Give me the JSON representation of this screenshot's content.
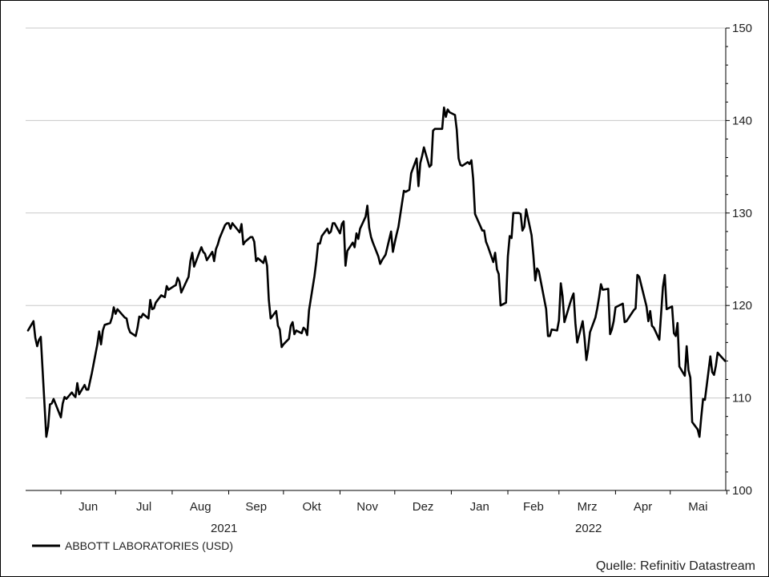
{
  "chart_data": {
    "type": "line",
    "y_axis": {
      "ylim": [
        100,
        150
      ],
      "ticks": [
        100,
        110,
        120,
        130,
        140,
        150
      ],
      "position": "right"
    },
    "x_axis": {
      "month_labels": [
        "Jun",
        "Jul",
        "Aug",
        "Sep",
        "Okt",
        "Nov",
        "Dez",
        "Jan",
        "Feb",
        "Mrz",
        "Apr",
        "Mai"
      ],
      "year_labels": [
        "2021",
        "2022"
      ],
      "xlim": [
        "2021-05-14",
        "2022-05-20"
      ]
    },
    "grid": "horizontal",
    "legend": {
      "position": "bottom-left",
      "entries": [
        "ABBOTT LABORATORIES (USD)"
      ]
    },
    "source": "Quelle: Refinitiv Datastream",
    "series": [
      {
        "name": "ABBOTT LABORATORIES (USD)",
        "color": "#000000",
        "points": [
          [
            "2021-05-14",
            117.3
          ],
          [
            "2021-05-17",
            118.3
          ],
          [
            "2021-05-18",
            116.5
          ],
          [
            "2021-05-19",
            115.6
          ],
          [
            "2021-05-20",
            116.3
          ],
          [
            "2021-05-21",
            116.6
          ],
          [
            "2021-05-24",
            105.8
          ],
          [
            "2021-05-25",
            106.9
          ],
          [
            "2021-05-26",
            109.3
          ],
          [
            "2021-05-27",
            109.4
          ],
          [
            "2021-05-28",
            109.9
          ],
          [
            "2021-06-01",
            107.9
          ],
          [
            "2021-06-02",
            109.4
          ],
          [
            "2021-06-03",
            110.1
          ],
          [
            "2021-06-04",
            109.9
          ],
          [
            "2021-06-07",
            110.6
          ],
          [
            "2021-06-08",
            110.3
          ],
          [
            "2021-06-09",
            110.1
          ],
          [
            "2021-06-10",
            111.6
          ],
          [
            "2021-06-11",
            110.4
          ],
          [
            "2021-06-14",
            111.4
          ],
          [
            "2021-06-15",
            110.9
          ],
          [
            "2021-06-16",
            110.9
          ],
          [
            "2021-06-17",
            111.8
          ],
          [
            "2021-06-18",
            112.7
          ],
          [
            "2021-06-21",
            115.8
          ],
          [
            "2021-06-22",
            117.2
          ],
          [
            "2021-06-23",
            115.8
          ],
          [
            "2021-06-24",
            117.3
          ],
          [
            "2021-06-25",
            117.9
          ],
          [
            "2021-06-28",
            118.1
          ],
          [
            "2021-06-29",
            118.7
          ],
          [
            "2021-06-30",
            119.8
          ],
          [
            "2021-07-01",
            119.1
          ],
          [
            "2021-07-02",
            119.6
          ],
          [
            "2021-07-06",
            118.7
          ],
          [
            "2021-07-07",
            118.6
          ],
          [
            "2021-07-08",
            117.6
          ],
          [
            "2021-07-09",
            117.1
          ],
          [
            "2021-07-12",
            116.7
          ],
          [
            "2021-07-13",
            117.6
          ],
          [
            "2021-07-14",
            118.8
          ],
          [
            "2021-07-15",
            118.7
          ],
          [
            "2021-07-16",
            119.1
          ],
          [
            "2021-07-19",
            118.6
          ],
          [
            "2021-07-20",
            120.6
          ],
          [
            "2021-07-21",
            119.6
          ],
          [
            "2021-07-22",
            119.7
          ],
          [
            "2021-07-23",
            120.3
          ],
          [
            "2021-07-26",
            121.1
          ],
          [
            "2021-07-27",
            121.0
          ],
          [
            "2021-07-28",
            120.9
          ],
          [
            "2021-07-29",
            122.1
          ],
          [
            "2021-07-30",
            121.7
          ],
          [
            "2021-08-02",
            122.1
          ],
          [
            "2021-08-03",
            122.2
          ],
          [
            "2021-08-04",
            123.0
          ],
          [
            "2021-08-05",
            122.6
          ],
          [
            "2021-08-06",
            121.4
          ],
          [
            "2021-08-09",
            122.7
          ],
          [
            "2021-08-10",
            123.1
          ],
          [
            "2021-08-11",
            124.8
          ],
          [
            "2021-08-12",
            125.7
          ],
          [
            "2021-08-13",
            124.2
          ],
          [
            "2021-08-16",
            125.8
          ],
          [
            "2021-08-17",
            126.3
          ],
          [
            "2021-08-18",
            125.8
          ],
          [
            "2021-08-19",
            125.6
          ],
          [
            "2021-08-20",
            124.9
          ],
          [
            "2021-08-23",
            125.8
          ],
          [
            "2021-08-24",
            124.8
          ],
          [
            "2021-08-25",
            126.1
          ],
          [
            "2021-08-26",
            126.6
          ],
          [
            "2021-08-27",
            127.3
          ],
          [
            "2021-08-30",
            128.7
          ],
          [
            "2021-08-31",
            128.9
          ],
          [
            "2021-09-01",
            128.9
          ],
          [
            "2021-09-02",
            128.3
          ],
          [
            "2021-09-03",
            128.9
          ],
          [
            "2021-09-07",
            127.9
          ],
          [
            "2021-09-08",
            128.8
          ],
          [
            "2021-09-09",
            126.6
          ],
          [
            "2021-09-10",
            126.9
          ],
          [
            "2021-09-13",
            127.4
          ],
          [
            "2021-09-14",
            127.4
          ],
          [
            "2021-09-15",
            126.9
          ],
          [
            "2021-09-16",
            124.8
          ],
          [
            "2021-09-17",
            125.1
          ],
          [
            "2021-09-20",
            124.6
          ],
          [
            "2021-09-21",
            125.3
          ],
          [
            "2021-09-22",
            124.3
          ],
          [
            "2021-09-23",
            120.6
          ],
          [
            "2021-09-24",
            118.6
          ],
          [
            "2021-09-27",
            119.4
          ],
          [
            "2021-09-28",
            117.8
          ],
          [
            "2021-09-29",
            117.4
          ],
          [
            "2021-09-30",
            115.5
          ],
          [
            "2021-10-01",
            115.8
          ],
          [
            "2021-10-04",
            116.4
          ],
          [
            "2021-10-05",
            117.8
          ],
          [
            "2021-10-06",
            118.2
          ],
          [
            "2021-10-07",
            116.9
          ],
          [
            "2021-10-08",
            117.3
          ],
          [
            "2021-10-11",
            117.0
          ],
          [
            "2021-10-12",
            117.6
          ],
          [
            "2021-10-13",
            117.4
          ],
          [
            "2021-10-14",
            116.8
          ],
          [
            "2021-10-15",
            119.5
          ],
          [
            "2021-10-18",
            123.2
          ],
          [
            "2021-10-19",
            124.8
          ],
          [
            "2021-10-20",
            126.7
          ],
          [
            "2021-10-21",
            126.7
          ],
          [
            "2021-10-22",
            127.5
          ],
          [
            "2021-10-25",
            128.3
          ],
          [
            "2021-10-26",
            127.8
          ],
          [
            "2021-10-27",
            128.0
          ],
          [
            "2021-10-28",
            128.9
          ],
          [
            "2021-10-29",
            128.9
          ],
          [
            "2021-11-01",
            127.8
          ],
          [
            "2021-11-02",
            128.8
          ],
          [
            "2021-11-03",
            129.1
          ],
          [
            "2021-11-04",
            124.3
          ],
          [
            "2021-11-05",
            125.9
          ],
          [
            "2021-11-08",
            126.8
          ],
          [
            "2021-11-09",
            126.3
          ],
          [
            "2021-11-10",
            127.8
          ],
          [
            "2021-11-11",
            127.2
          ],
          [
            "2021-11-12",
            128.3
          ],
          [
            "2021-11-15",
            129.6
          ],
          [
            "2021-11-16",
            130.8
          ],
          [
            "2021-11-17",
            128.4
          ],
          [
            "2021-11-18",
            127.4
          ],
          [
            "2021-11-19",
            126.8
          ],
          [
            "2021-11-22",
            125.3
          ],
          [
            "2021-11-23",
            124.5
          ],
          [
            "2021-11-24",
            124.9
          ],
          [
            "2021-11-26",
            125.5
          ],
          [
            "2021-11-29",
            128.0
          ],
          [
            "2021-11-30",
            125.8
          ],
          [
            "2021-12-01",
            126.8
          ],
          [
            "2021-12-02",
            127.7
          ],
          [
            "2021-12-03",
            128.5
          ],
          [
            "2021-12-06",
            132.4
          ],
          [
            "2021-12-07",
            132.3
          ],
          [
            "2021-12-08",
            132.4
          ],
          [
            "2021-12-09",
            132.5
          ],
          [
            "2021-12-10",
            134.3
          ],
          [
            "2021-12-13",
            135.9
          ],
          [
            "2021-12-14",
            132.9
          ],
          [
            "2021-12-15",
            135.4
          ],
          [
            "2021-12-16",
            136.2
          ],
          [
            "2021-12-17",
            137.1
          ],
          [
            "2021-12-20",
            135.0
          ],
          [
            "2021-12-21",
            135.2
          ],
          [
            "2021-12-22",
            138.9
          ],
          [
            "2021-12-23",
            139.1
          ],
          [
            "2021-12-27",
            139.1
          ],
          [
            "2021-12-28",
            141.4
          ],
          [
            "2021-12-29",
            140.4
          ],
          [
            "2021-12-30",
            141.2
          ],
          [
            "2021-12-31",
            140.9
          ],
          [
            "2022-01-03",
            140.6
          ],
          [
            "2022-01-04",
            139.0
          ],
          [
            "2022-01-05",
            135.9
          ],
          [
            "2022-01-06",
            135.2
          ],
          [
            "2022-01-07",
            135.1
          ],
          [
            "2022-01-10",
            135.5
          ],
          [
            "2022-01-11",
            135.3
          ],
          [
            "2022-01-12",
            135.7
          ],
          [
            "2022-01-13",
            133.7
          ],
          [
            "2022-01-14",
            129.9
          ],
          [
            "2022-01-18",
            128.1
          ],
          [
            "2022-01-19",
            128.1
          ],
          [
            "2022-01-20",
            126.9
          ],
          [
            "2022-01-21",
            126.4
          ],
          [
            "2022-01-24",
            124.7
          ],
          [
            "2022-01-25",
            125.7
          ],
          [
            "2022-01-26",
            123.9
          ],
          [
            "2022-01-27",
            123.4
          ],
          [
            "2022-01-28",
            120.0
          ],
          [
            "2022-01-31",
            120.3
          ],
          [
            "2022-02-01",
            125.3
          ],
          [
            "2022-02-02",
            127.5
          ],
          [
            "2022-02-03",
            127.3
          ],
          [
            "2022-02-04",
            130.0
          ],
          [
            "2022-02-07",
            130.0
          ],
          [
            "2022-02-08",
            129.9
          ],
          [
            "2022-02-09",
            128.1
          ],
          [
            "2022-02-10",
            128.5
          ],
          [
            "2022-02-11",
            130.4
          ],
          [
            "2022-02-14",
            127.6
          ],
          [
            "2022-02-15",
            125.4
          ],
          [
            "2022-02-16",
            122.7
          ],
          [
            "2022-02-17",
            124.0
          ],
          [
            "2022-02-18",
            123.7
          ],
          [
            "2022-02-22",
            119.6
          ],
          [
            "2022-02-23",
            116.7
          ],
          [
            "2022-02-24",
            116.7
          ],
          [
            "2022-02-25",
            117.4
          ],
          [
            "2022-02-28",
            117.3
          ],
          [
            "2022-03-01",
            118.4
          ],
          [
            "2022-03-02",
            122.4
          ],
          [
            "2022-03-03",
            121.0
          ],
          [
            "2022-03-04",
            118.2
          ],
          [
            "2022-03-07",
            120.2
          ],
          [
            "2022-03-08",
            120.8
          ],
          [
            "2022-03-09",
            121.3
          ],
          [
            "2022-03-10",
            118.1
          ],
          [
            "2022-03-11",
            116.0
          ],
          [
            "2022-03-14",
            118.3
          ],
          [
            "2022-03-15",
            116.5
          ],
          [
            "2022-03-16",
            114.1
          ],
          [
            "2022-03-17",
            115.3
          ],
          [
            "2022-03-18",
            117.1
          ],
          [
            "2022-03-21",
            118.7
          ],
          [
            "2022-03-22",
            119.7
          ],
          [
            "2022-03-23",
            120.9
          ],
          [
            "2022-03-24",
            122.3
          ],
          [
            "2022-03-25",
            121.7
          ],
          [
            "2022-03-28",
            121.8
          ],
          [
            "2022-03-29",
            116.9
          ],
          [
            "2022-03-30",
            117.4
          ],
          [
            "2022-03-31",
            118.3
          ],
          [
            "2022-04-01",
            119.8
          ],
          [
            "2022-04-04",
            120.1
          ],
          [
            "2022-04-05",
            120.2
          ],
          [
            "2022-04-06",
            118.2
          ],
          [
            "2022-04-07",
            118.3
          ],
          [
            "2022-04-08",
            118.6
          ],
          [
            "2022-04-11",
            119.5
          ],
          [
            "2022-04-12",
            119.7
          ],
          [
            "2022-04-13",
            123.3
          ],
          [
            "2022-04-14",
            123.1
          ],
          [
            "2022-04-18",
            119.9
          ],
          [
            "2022-04-19",
            118.3
          ],
          [
            "2022-04-20",
            119.4
          ],
          [
            "2022-04-21",
            117.8
          ],
          [
            "2022-04-22",
            117.6
          ],
          [
            "2022-04-25",
            116.3
          ],
          [
            "2022-04-26",
            119.1
          ],
          [
            "2022-04-27",
            122.0
          ],
          [
            "2022-04-28",
            123.3
          ],
          [
            "2022-04-29",
            119.6
          ],
          [
            "2022-05-02",
            119.9
          ],
          [
            "2022-05-03",
            117.0
          ],
          [
            "2022-05-04",
            116.7
          ],
          [
            "2022-05-05",
            118.1
          ],
          [
            "2022-05-06",
            113.4
          ],
          [
            "2022-05-09",
            112.4
          ],
          [
            "2022-05-10",
            115.6
          ],
          [
            "2022-05-11",
            113.0
          ],
          [
            "2022-05-12",
            112.2
          ],
          [
            "2022-05-13",
            107.4
          ],
          [
            "2022-05-16",
            106.6
          ],
          [
            "2022-05-17",
            105.8
          ],
          [
            "2022-05-18",
            107.9
          ],
          [
            "2022-05-19",
            109.9
          ],
          [
            "2022-05-20",
            109.8
          ],
          [
            "2022-05-23",
            114.5
          ],
          [
            "2022-05-24",
            112.8
          ],
          [
            "2022-05-25",
            112.5
          ],
          [
            "2022-05-26",
            113.5
          ],
          [
            "2022-05-27",
            114.9
          ],
          [
            "2022-05-31",
            114.0
          ]
        ]
      }
    ]
  }
}
